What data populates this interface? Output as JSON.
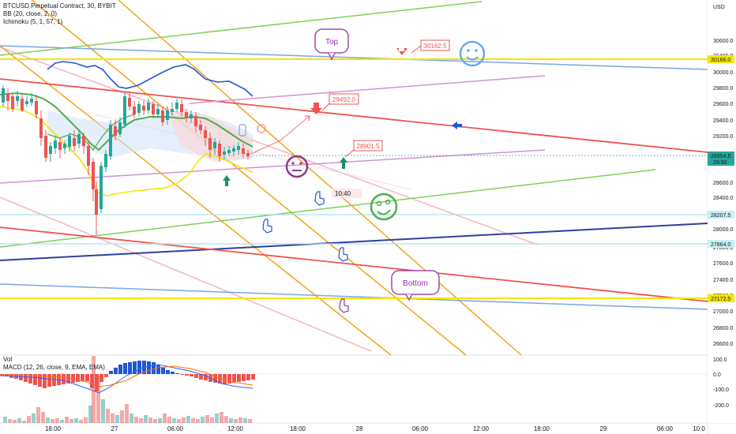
{
  "header": {
    "symbol_line": "BTCUSD Perpetual Contract, 30, BYBIT",
    "indicator_bb": "BB (20, close, 2, 0)",
    "indicator_ichimoku": "Ichimoku (5, 1, 57, 1)"
  },
  "lower_pane": {
    "vol_label": "Vol",
    "macd_label": "MACD (12, 26, close, 9, EMA, EMA)",
    "ticks": [
      "0.0",
      "-100.0",
      "-200.0"
    ],
    "top_tick": "100.0"
  },
  "price_axis": {
    "unit": "USD",
    "ticks": [
      "30600.0",
      "30400.0",
      "30000.0",
      "29800.0",
      "29600.0",
      "29400.0",
      "29200.0",
      "28600.0",
      "28400.0",
      "28000.0",
      "27800.0",
      "27600.0",
      "27400.0",
      "27200.0",
      "27000.0",
      "26800.0",
      "26600.0"
    ],
    "tags": [
      {
        "label": "30166.0",
        "color": "#f5e400",
        "text_color": "#131722"
      },
      {
        "label": "28954.5",
        "sub": "29:50",
        "color": "#26a69a",
        "text_color": "#ffffff"
      },
      {
        "label": "28207.5",
        "color": "#c6f0f2",
        "text_color": "#131722"
      },
      {
        "label": "27864.0",
        "color": "#c6f0f2",
        "text_color": "#131722"
      },
      {
        "label": "27172.5",
        "color": "#f5e400",
        "text_color": "#131722"
      }
    ]
  },
  "time_axis": {
    "labels": [
      "18:00",
      "27",
      "06:00",
      "12:00",
      "18:00",
      "28",
      "06:00",
      "12:00",
      "18:00",
      "29",
      "06:00",
      "10:0"
    ]
  },
  "annotations": {
    "top_bubble": "Top",
    "bottom_bubble": "Bottom",
    "price_note_1": "30162.5",
    "price_note_2": "29492.0",
    "price_note_3": "28901.5",
    "time_note": "10:40"
  },
  "colors": {
    "up": "#26a69a",
    "down": "#ef5350",
    "bb_basis": "#1e57d6",
    "yellow_line": "#f5e400",
    "orange_channel": "#f7a21b",
    "red_line": "#ef5350",
    "green_line": "#7ccf5a",
    "blue_line": "#7aa6e8",
    "violet_line": "#ce93d8",
    "smiley_blue": "#6ea8f0",
    "smiley_green": "#4caf50",
    "smiley_purple": "#8e3a8e"
  }
}
